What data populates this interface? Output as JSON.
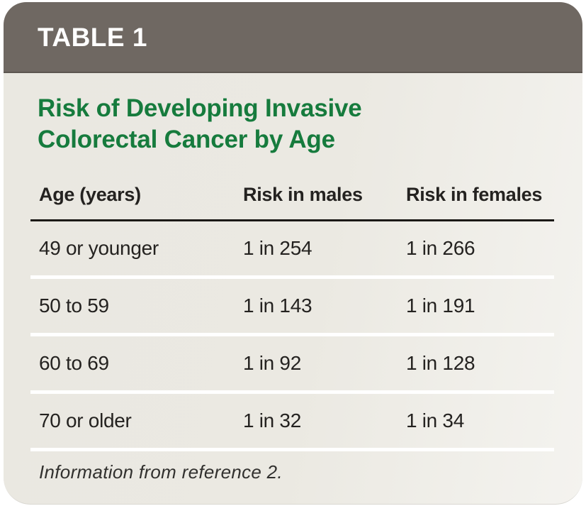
{
  "table_label": "TABLE 1",
  "title": {
    "line1": "Risk of Developing Invasive",
    "line2": "Colorectal Cancer by Age"
  },
  "chart_data": {
    "type": "table",
    "title": "Risk of Developing Invasive Colorectal Cancer by Age",
    "columns": [
      "Age (years)",
      "Risk in males",
      "Risk in females"
    ],
    "rows": [
      [
        "49 or younger",
        "1 in 254",
        "1 in 266"
      ],
      [
        "50 to 59",
        "1 in 143",
        "1 in 191"
      ],
      [
        "60 to 69",
        "1 in 92",
        "1 in 128"
      ],
      [
        "70 or older",
        "1 in 32",
        "1 in 34"
      ]
    ],
    "footnote": "Information from reference 2."
  },
  "footnote": "Information from reference 2.",
  "colors": {
    "header_bar": "#6f6862",
    "card_background": "#eae8e1",
    "title_green": "#167b3d",
    "body_text": "#242220",
    "header_rule_black": "#1b1916",
    "row_separator_white": "#ffffff",
    "page_background": "#ffffff"
  }
}
